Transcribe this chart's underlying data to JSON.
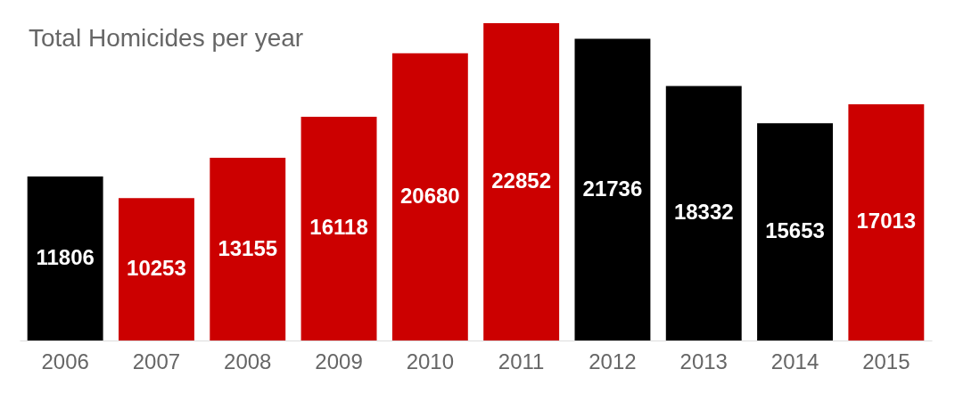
{
  "chart_data": {
    "type": "bar",
    "title": "Total Homicides per year",
    "categories": [
      "2006",
      "2007",
      "2008",
      "2009",
      "2010",
      "2011",
      "2012",
      "2013",
      "2014",
      "2015"
    ],
    "values": [
      11806,
      10253,
      13155,
      16118,
      20680,
      22852,
      21736,
      18332,
      15653,
      17013
    ],
    "colors": [
      "#000000",
      "#cc0000",
      "#cc0000",
      "#cc0000",
      "#cc0000",
      "#cc0000",
      "#000000",
      "#000000",
      "#000000",
      "#cc0000"
    ],
    "data_labels": true,
    "grid": false
  }
}
